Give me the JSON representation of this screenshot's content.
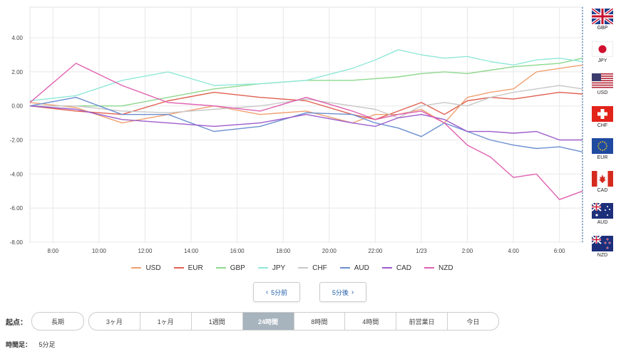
{
  "chart_data": {
    "type": "line",
    "y_ticks": [
      "4.00",
      "2.00",
      "0.00",
      "-2.00",
      "-4.00",
      "-6.00",
      "-8.00"
    ],
    "y_tick_values": [
      4,
      2,
      0,
      -2,
      -4,
      -6,
      -8
    ],
    "ylim": [
      -8,
      5.8
    ],
    "x_ticks": [
      "8:00",
      "10:00",
      "12:00",
      "14:00",
      "16:00",
      "18:00",
      "20:00",
      "22:00",
      "1/23",
      "2:00",
      "4:00",
      "6:00"
    ],
    "x_tick_hours": [
      1,
      3,
      5,
      7,
      9,
      11,
      13,
      15,
      17,
      19,
      21,
      23
    ],
    "xlim": [
      0,
      24
    ],
    "grid": true,
    "legend_position": "bottom",
    "series": [
      {
        "name": "USD",
        "color": "#f0a070",
        "x": [
          0,
          2,
          4,
          6,
          8,
          10,
          12,
          14,
          15,
          16,
          17,
          18,
          19,
          20,
          21,
          22,
          23,
          24
        ],
        "values": [
          0.2,
          -0.1,
          -1.0,
          -0.5,
          0.0,
          -0.5,
          -0.3,
          -1.0,
          -0.5,
          -0.5,
          -0.2,
          -1.0,
          0.5,
          0.8,
          1.0,
          2.0,
          2.2,
          2.4
        ]
      },
      {
        "name": "EUR",
        "color": "#e06050",
        "x": [
          0,
          2,
          4,
          6,
          8,
          10,
          12,
          14,
          15,
          16,
          17,
          18,
          19,
          20,
          21,
          22,
          23,
          24
        ],
        "values": [
          0.0,
          -0.3,
          -0.5,
          0.3,
          0.8,
          0.5,
          0.3,
          -0.5,
          -0.8,
          -0.3,
          0.2,
          -0.5,
          0.3,
          0.5,
          0.4,
          0.6,
          0.8,
          0.7
        ]
      },
      {
        "name": "GBP",
        "color": "#8ed88e",
        "x": [
          0,
          2,
          4,
          6,
          8,
          10,
          12,
          14,
          15,
          16,
          17,
          18,
          19,
          20,
          21,
          22,
          23,
          24
        ],
        "values": [
          0.0,
          0.0,
          0.0,
          0.5,
          1.0,
          1.3,
          1.5,
          1.5,
          1.6,
          1.7,
          1.9,
          2.0,
          1.9,
          2.1,
          2.3,
          2.4,
          2.5,
          2.8
        ]
      },
      {
        "name": "JPY",
        "color": "#90e8d8",
        "x": [
          0,
          2,
          4,
          6,
          8,
          10,
          12,
          14,
          15,
          16,
          17,
          18,
          19,
          20,
          21,
          22,
          23,
          24
        ],
        "values": [
          0.3,
          0.6,
          1.5,
          2.0,
          1.2,
          1.3,
          1.5,
          2.2,
          2.7,
          3.3,
          3.0,
          2.8,
          2.9,
          2.6,
          2.4,
          2.7,
          2.8,
          2.6
        ]
      },
      {
        "name": "CHF",
        "color": "#c8c8c8",
        "x": [
          0,
          2,
          4,
          6,
          8,
          10,
          12,
          14,
          15,
          16,
          17,
          18,
          19,
          20,
          21,
          22,
          23,
          24
        ],
        "values": [
          0.0,
          0.0,
          -0.3,
          -0.4,
          -0.2,
          0.0,
          0.4,
          0.0,
          -0.2,
          -0.7,
          0.0,
          0.2,
          0.0,
          0.5,
          0.8,
          1.0,
          1.2,
          1.0
        ]
      },
      {
        "name": "AUD",
        "color": "#6b8fd0",
        "x": [
          0,
          2,
          4,
          6,
          8,
          10,
          12,
          14,
          15,
          16,
          17,
          18,
          19,
          20,
          21,
          22,
          23,
          24
        ],
        "values": [
          0.0,
          0.5,
          -0.5,
          -0.5,
          -1.5,
          -1.2,
          -0.4,
          -0.5,
          -1.0,
          -1.3,
          -1.8,
          -1.0,
          -1.5,
          -2.0,
          -2.3,
          -2.5,
          -2.4,
          -2.7
        ]
      },
      {
        "name": "CAD",
        "color": "#9c5ccc",
        "x": [
          0,
          2,
          4,
          6,
          8,
          10,
          12,
          14,
          15,
          16,
          17,
          18,
          19,
          20,
          21,
          22,
          23,
          24
        ],
        "values": [
          0.0,
          -0.2,
          -0.8,
          -1.0,
          -1.2,
          -1.0,
          -0.5,
          -1.0,
          -1.2,
          -0.7,
          -0.5,
          -0.8,
          -1.5,
          -1.5,
          -1.6,
          -1.5,
          -2.0,
          -2.0
        ]
      },
      {
        "name": "NZD",
        "color": "#e060b0",
        "x": [
          0,
          2,
          4,
          6,
          8,
          10,
          12,
          14,
          15,
          16,
          17,
          18,
          19,
          20,
          21,
          22,
          23,
          24
        ],
        "values": [
          0.2,
          2.5,
          1.2,
          0.2,
          0.0,
          -0.3,
          0.5,
          -0.3,
          -0.8,
          -0.5,
          -0.3,
          -1.0,
          -2.3,
          -3.0,
          -4.2,
          -4.0,
          -5.5,
          -5.0
        ]
      }
    ]
  },
  "flags": [
    {
      "code": "GBP",
      "icon": "uk-flag-icon"
    },
    {
      "code": "JPY",
      "icon": "japan-flag-icon"
    },
    {
      "code": "USD",
      "icon": "us-flag-icon"
    },
    {
      "code": "CHF",
      "icon": "swiss-flag-icon"
    },
    {
      "code": "EUR",
      "icon": "eu-flag-icon"
    },
    {
      "code": "CAD",
      "icon": "canada-flag-icon"
    },
    {
      "code": "AUD",
      "icon": "australia-flag-icon"
    },
    {
      "code": "NZD",
      "icon": "newzealand-flag-icon"
    }
  ],
  "nav": {
    "prev_label": "5分前",
    "next_label": "5分後",
    "prev_icon": "chevron-left-icon",
    "next_icon": "chevron-right-icon"
  },
  "controls": {
    "start_label": "起点：",
    "long_term": "長期",
    "periods": [
      "3ヶ月",
      "1ヶ月",
      "1週間",
      "24時間",
      "8時間",
      "4時間",
      "前営業日",
      "今日"
    ],
    "active_period": "24時間",
    "interval_label": "時間足：",
    "interval_value": "5分足"
  },
  "colors": {
    "accent": "#1f5da8",
    "active_tab": "#a7b3bd",
    "grid": "#e8e8e8"
  }
}
